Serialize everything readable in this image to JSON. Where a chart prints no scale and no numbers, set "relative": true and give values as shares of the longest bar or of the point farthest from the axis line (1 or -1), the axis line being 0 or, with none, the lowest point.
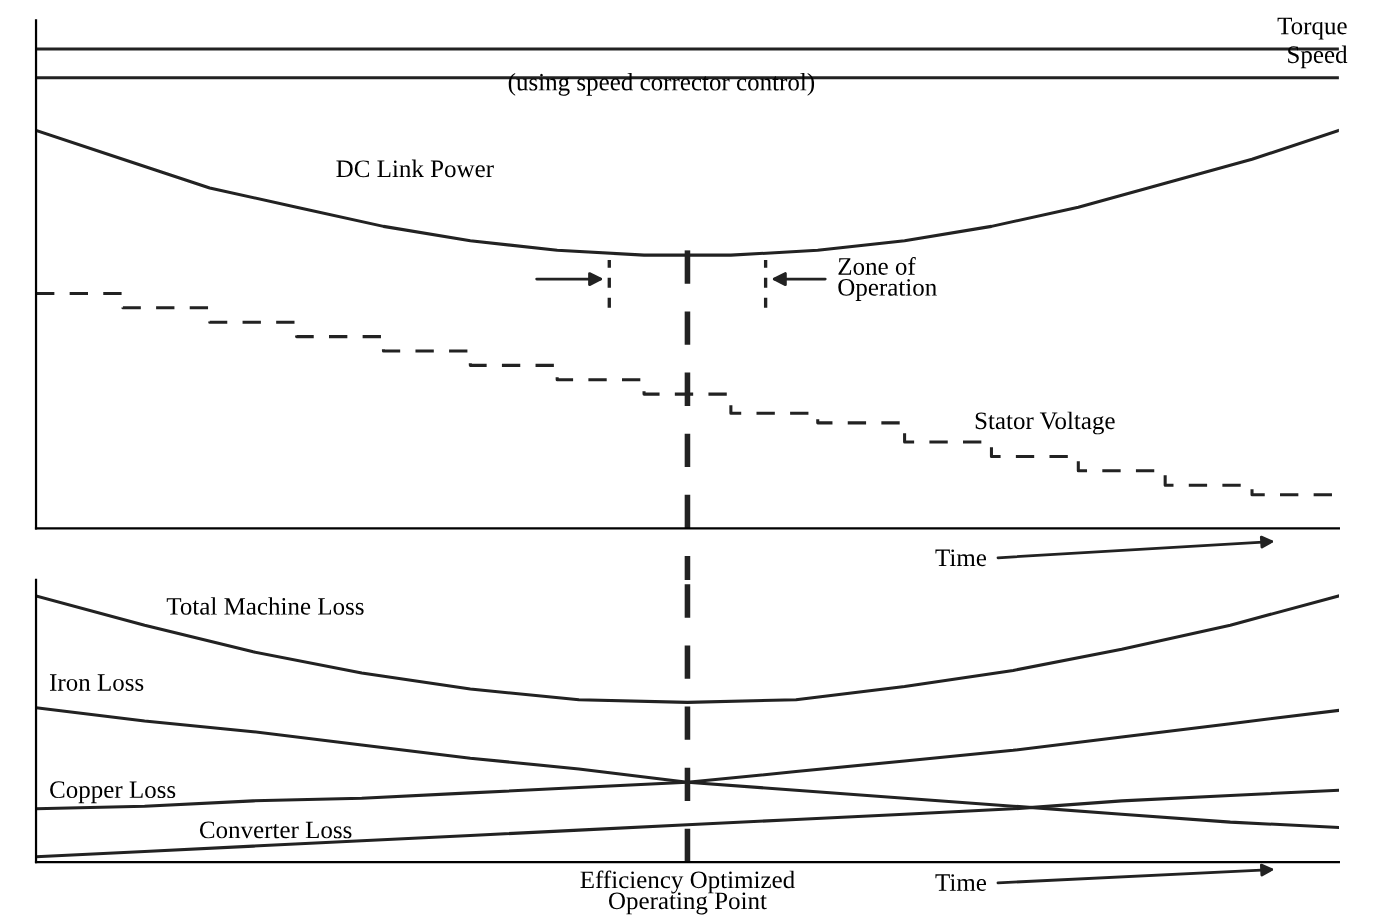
{
  "chart_data": [
    {
      "type": "line",
      "relative": true,
      "xlabel": "Time",
      "line_style": "solid",
      "legend": false,
      "categories": [
        null,
        null,
        null,
        null,
        null,
        null,
        null,
        null,
        null,
        null,
        null,
        null,
        null,
        null,
        null,
        null
      ],
      "series": [
        {
          "name": "Torque",
          "color": "#222222",
          "values": [
            1,
            1,
            1,
            1,
            1,
            1,
            1,
            1,
            1,
            1,
            1,
            1,
            1,
            1,
            1,
            1
          ]
        },
        {
          "name": "Speed",
          "color": "#222222",
          "values": [
            0.94,
            0.94,
            0.94,
            0.94,
            0.94,
            0.94,
            0.94,
            0.94,
            0.94,
            0.94,
            0.94,
            0.94,
            0.94,
            0.94,
            0.94,
            0.94
          ]
        },
        {
          "name": "DC Link Power",
          "color": "#222222",
          "values": [
            0.83,
            0.77,
            0.71,
            0.67,
            0.63,
            0.6,
            0.58,
            0.57,
            0.57,
            0.58,
            0.6,
            0.63,
            0.67,
            0.72,
            0.77,
            0.83
          ]
        },
        {
          "name": "Stator Voltage",
          "type": "step",
          "line_style": "dashed",
          "color": "#222222",
          "values": [
            0.49,
            0.46,
            0.43,
            0.4,
            0.37,
            0.34,
            0.31,
            0.28,
            0.24,
            0.22,
            0.18,
            0.15,
            0.12,
            0.09,
            0.07,
            0.07
          ]
        }
      ],
      "annotations": [
        "(using speed corrector control)",
        "Zone of\nOperation"
      ]
    },
    {
      "type": "line",
      "relative": true,
      "xlabel": "Time",
      "line_style": "solid",
      "legend": false,
      "categories": [
        null,
        null,
        null,
        null,
        null,
        null,
        null,
        null,
        null,
        null,
        null,
        null,
        null
      ],
      "series": [
        {
          "name": "Total Machine Loss",
          "color": "#222222",
          "values": [
            1.0,
            0.89,
            0.79,
            0.71,
            0.65,
            0.61,
            0.6,
            0.61,
            0.66,
            0.72,
            0.8,
            0.89,
            1.0
          ]
        },
        {
          "name": "Iron Loss",
          "color": "#222222",
          "values": [
            0.58,
            0.53,
            0.49,
            0.44,
            0.39,
            0.35,
            0.3,
            0.27,
            0.24,
            0.21,
            0.18,
            0.15,
            0.13
          ]
        },
        {
          "name": "Copper Loss",
          "color": "#222222",
          "values": [
            0.2,
            0.21,
            0.23,
            0.24,
            0.26,
            0.28,
            0.3,
            0.34,
            0.38,
            0.42,
            0.47,
            0.52,
            0.57
          ]
        },
        {
          "name": "Converter Loss",
          "color": "#222222",
          "values": [
            0.02,
            0.04,
            0.06,
            0.08,
            0.1,
            0.12,
            0.14,
            0.16,
            0.18,
            0.2,
            0.23,
            0.25,
            0.27
          ]
        }
      ],
      "annotations": [
        "Efficiency Optimized\nOperating Point"
      ]
    }
  ]
}
